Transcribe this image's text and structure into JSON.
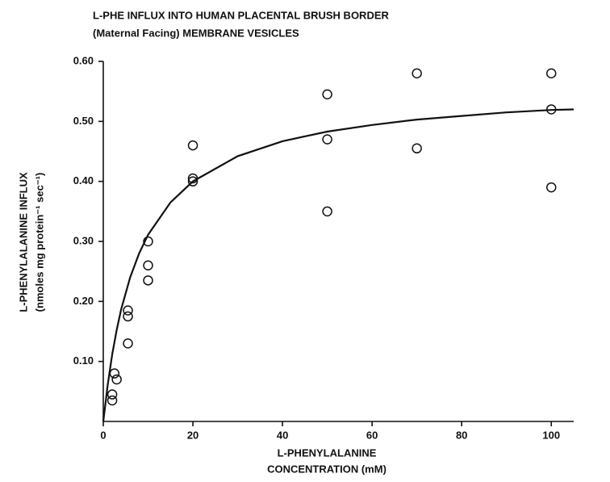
{
  "chart_data": {
    "type": "scatter",
    "title": [
      "L-PHE INFLUX INTO HUMAN PLACENTAL BRUSH BORDER",
      "(Maternal Facing) MEMBRANE VESICLES"
    ],
    "x_label": [
      "L-PHENYLALANINE",
      "CONCENTRATION (mM)"
    ],
    "y_label": [
      "L-PHENYLALANINE INFLUX",
      "(nmoles mg protein⁻¹ sec⁻¹)"
    ],
    "xlim": [
      0,
      105
    ],
    "ylim": [
      0,
      0.6
    ],
    "xticks": [
      0,
      20,
      40,
      60,
      80,
      100
    ],
    "yticks": [
      {
        "value": 0.1,
        "label": "0.10"
      },
      {
        "value": 0.2,
        "label": "0.20"
      },
      {
        "value": 0.3,
        "label": "0.30"
      },
      {
        "value": 0.4,
        "label": "0.40"
      },
      {
        "value": 0.5,
        "label": "0.50"
      },
      {
        "value": 0.6,
        "label": "0.60"
      }
    ],
    "points": {
      "x": [
        2,
        2,
        2.5,
        3,
        5.5,
        5.5,
        5.5,
        10,
        10,
        10,
        20,
        20,
        20,
        50,
        50,
        50,
        70,
        70,
        100,
        100,
        100
      ],
      "values": [
        0.035,
        0.045,
        0.08,
        0.07,
        0.185,
        0.175,
        0.13,
        0.3,
        0.26,
        0.235,
        0.46,
        0.405,
        0.4,
        0.545,
        0.47,
        0.35,
        0.58,
        0.455,
        0.58,
        0.52,
        0.39
      ]
    },
    "curve": {
      "x": [
        0,
        1,
        2,
        3,
        4,
        6,
        8,
        10,
        15,
        20,
        30,
        40,
        50,
        60,
        70,
        80,
        90,
        100,
        105
      ],
      "values": [
        0,
        0.062,
        0.112,
        0.153,
        0.187,
        0.24,
        0.28,
        0.311,
        0.365,
        0.4,
        0.442,
        0.467,
        0.483,
        0.494,
        0.503,
        0.509,
        0.515,
        0.519,
        0.52
      ]
    },
    "color": "#111111"
  }
}
